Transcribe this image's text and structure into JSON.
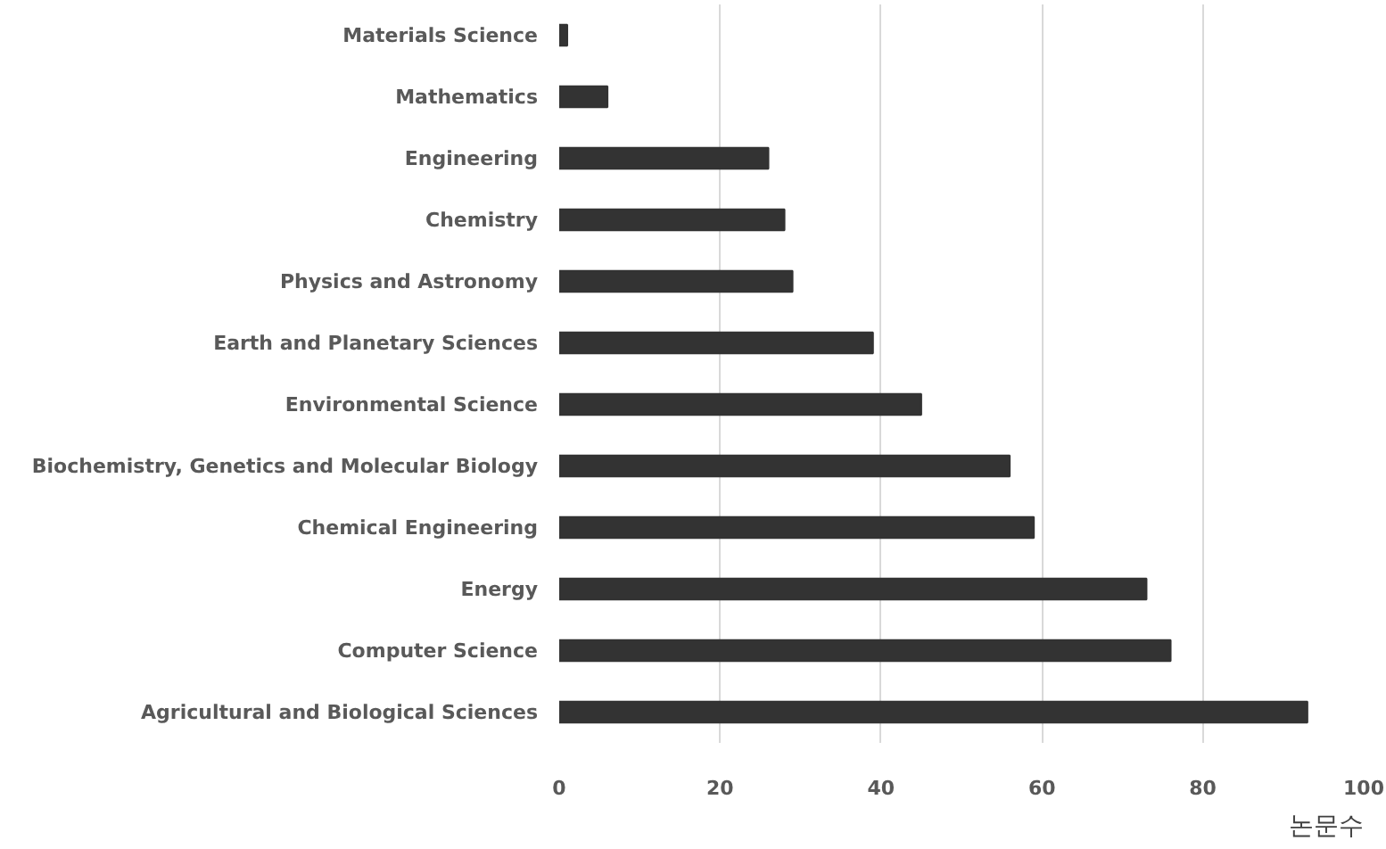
{
  "chart_data": {
    "type": "bar",
    "orientation": "horizontal",
    "categories": [
      "Materials Science",
      "Mathematics",
      "Engineering",
      "Chemistry",
      "Physics and Astronomy",
      "Earth and Planetary Sciences",
      "Environmental Science",
      "Biochemistry, Genetics and Molecular Biology",
      "Chemical Engineering",
      "Energy",
      "Computer Science",
      "Agricultural and Biological Sciences"
    ],
    "values": [
      1,
      6,
      26,
      28,
      29,
      39,
      45,
      56,
      59,
      73,
      76,
      93
    ],
    "color": "#333333",
    "xlabel": "논문수",
    "xlim": [
      0,
      100
    ],
    "xticks": [
      0,
      20,
      40,
      60,
      80,
      100
    ],
    "grid": "x"
  }
}
